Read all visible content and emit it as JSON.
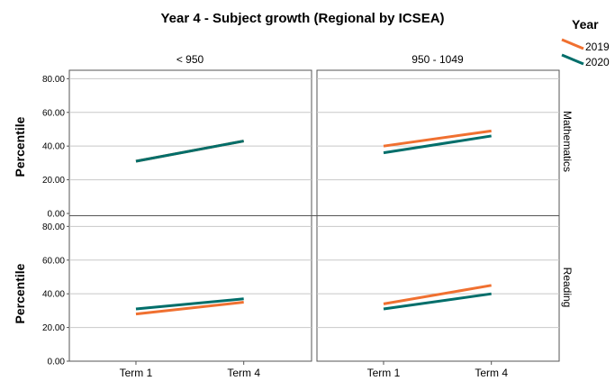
{
  "chart_data": {
    "type": "line",
    "title": "Year 4 - Subject growth (Regional by ICSEA)",
    "ylabel": "Percentile",
    "categories": [
      "Term 1",
      "Term 4"
    ],
    "ylim": [
      0,
      85
    ],
    "yticks": [
      "0.00",
      "20.00",
      "40.00",
      "60.00",
      "80.00"
    ],
    "grid": true,
    "legend": {
      "title": "Year",
      "placement": "top-right",
      "entries": [
        {
          "name": "2019",
          "color": "#f07030"
        },
        {
          "name": "2020",
          "color": "#006e6a"
        }
      ]
    },
    "columns": [
      "< 950",
      "950 - 1049"
    ],
    "rows": [
      "Mathematics",
      "Reading"
    ],
    "panels": [
      {
        "column": "< 950",
        "row": "Mathematics",
        "series": [
          {
            "name": "2019",
            "values": [
              31,
              43
            ]
          },
          {
            "name": "2020",
            "values": [
              31,
              43
            ]
          }
        ]
      },
      {
        "column": "950 - 1049",
        "row": "Mathematics",
        "series": [
          {
            "name": "2019",
            "values": [
              40,
              49
            ]
          },
          {
            "name": "2020",
            "values": [
              36,
              46
            ]
          }
        ]
      },
      {
        "column": "< 950",
        "row": "Reading",
        "series": [
          {
            "name": "2019",
            "values": [
              28,
              35
            ]
          },
          {
            "name": "2020",
            "values": [
              31,
              37
            ]
          }
        ]
      },
      {
        "column": "950 - 1049",
        "row": "Reading",
        "series": [
          {
            "name": "2019",
            "values": [
              34,
              45
            ]
          },
          {
            "name": "2020",
            "values": [
              31,
              40
            ]
          }
        ]
      }
    ]
  }
}
